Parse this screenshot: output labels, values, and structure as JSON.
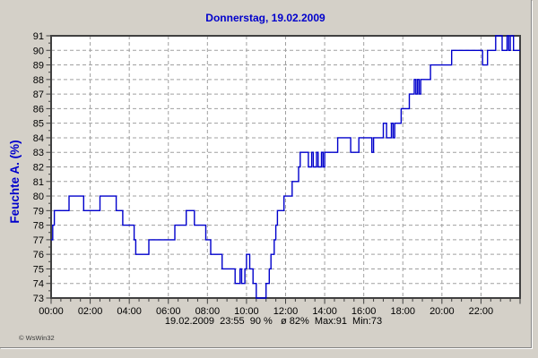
{
  "panel": {
    "copyright": "© WsWin32"
  },
  "chart_data": {
    "type": "line",
    "title": "Donnerstag, 19.02.2009",
    "ylabel": "Feuchte A. (%)",
    "status_line": "19.02.2009  23:55  90 %   ø 82%  Max:91  Min:73",
    "stats": {
      "date": "19.02.2009",
      "last_time": "23:55",
      "last_value": "90 %",
      "average": "ø 82%",
      "max": "Max:91",
      "min": "Min:73"
    },
    "ylim": [
      73,
      91
    ],
    "yticks": [
      73,
      74,
      75,
      76,
      77,
      78,
      79,
      80,
      81,
      82,
      83,
      84,
      85,
      86,
      87,
      88,
      89,
      90,
      91
    ],
    "xlim_minutes": [
      0,
      1440
    ],
    "x_minutes_per_tick": 120,
    "x_minor_minutes": 30,
    "xticks": [
      "00:00",
      "02:00",
      "04:00",
      "06:00",
      "08:00",
      "10:00",
      "12:00",
      "14:00",
      "16:00",
      "18:00",
      "20:00",
      "22:00"
    ],
    "grid": "dashed",
    "legend_position": "none",
    "colors": {
      "line": "#0000cc",
      "title": "#0000cc",
      "grid": "#a0a0a0",
      "plot_border": "#404040",
      "tick": "#404040",
      "plot_bg": "#ffffff",
      "panel_bg": "#d4d0c8",
      "text": "#000000"
    },
    "series": [
      {
        "name": "Feuchte A.",
        "step": true,
        "points_min_val": [
          [
            0,
            77
          ],
          [
            5,
            78
          ],
          [
            10,
            79
          ],
          [
            55,
            80
          ],
          [
            100,
            79
          ],
          [
            150,
            80
          ],
          [
            200,
            79
          ],
          [
            220,
            78
          ],
          [
            255,
            77
          ],
          [
            260,
            76
          ],
          [
            300,
            77
          ],
          [
            380,
            78
          ],
          [
            415,
            79
          ],
          [
            440,
            78
          ],
          [
            475,
            77
          ],
          [
            490,
            76
          ],
          [
            525,
            75
          ],
          [
            565,
            74
          ],
          [
            580,
            75
          ],
          [
            585,
            74
          ],
          [
            595,
            75
          ],
          [
            600,
            76
          ],
          [
            610,
            75
          ],
          [
            620,
            74
          ],
          [
            630,
            73
          ],
          [
            660,
            74
          ],
          [
            670,
            75
          ],
          [
            675,
            76
          ],
          [
            685,
            77
          ],
          [
            690,
            78
          ],
          [
            695,
            79
          ],
          [
            715,
            80
          ],
          [
            740,
            81
          ],
          [
            760,
            82
          ],
          [
            765,
            83
          ],
          [
            790,
            82
          ],
          [
            800,
            83
          ],
          [
            805,
            82
          ],
          [
            815,
            83
          ],
          [
            820,
            82
          ],
          [
            830,
            83
          ],
          [
            835,
            82
          ],
          [
            840,
            83
          ],
          [
            880,
            84
          ],
          [
            920,
            83
          ],
          [
            945,
            84
          ],
          [
            985,
            83
          ],
          [
            990,
            84
          ],
          [
            1020,
            85
          ],
          [
            1030,
            84
          ],
          [
            1045,
            85
          ],
          [
            1050,
            84
          ],
          [
            1055,
            85
          ],
          [
            1075,
            86
          ],
          [
            1100,
            87
          ],
          [
            1115,
            88
          ],
          [
            1120,
            87
          ],
          [
            1125,
            88
          ],
          [
            1130,
            87
          ],
          [
            1135,
            88
          ],
          [
            1165,
            89
          ],
          [
            1230,
            90
          ],
          [
            1325,
            89
          ],
          [
            1340,
            90
          ],
          [
            1365,
            91
          ],
          [
            1385,
            90
          ],
          [
            1400,
            91
          ],
          [
            1405,
            90
          ],
          [
            1410,
            91
          ],
          [
            1420,
            90
          ]
        ]
      }
    ]
  }
}
